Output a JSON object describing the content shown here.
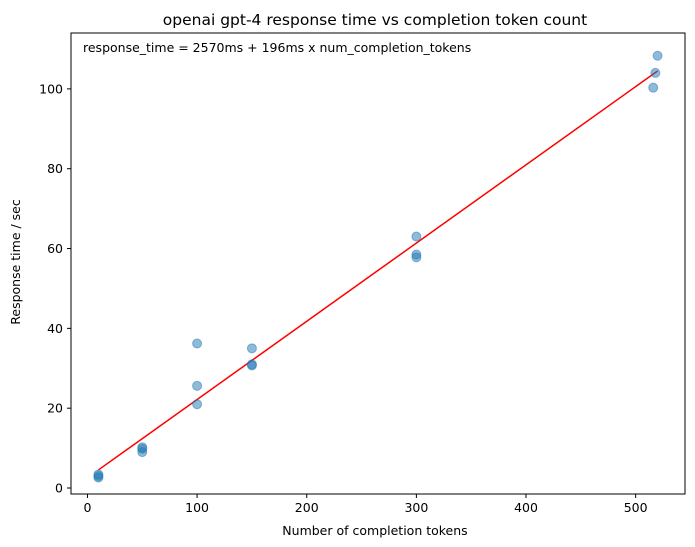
{
  "chart_data": {
    "type": "scatter",
    "title": "openai gpt-4 response time vs completion token count",
    "xlabel": "Number of completion tokens",
    "ylabel": "Response time / sec",
    "annotation": "response_time = 2570ms + 196ms x num_completion_tokens",
    "xlim": [
      -15,
      545
    ],
    "ylim": [
      -1.5,
      114
    ],
    "xticks": [
      0,
      100,
      200,
      300,
      400,
      500
    ],
    "yticks": [
      0,
      20,
      40,
      60,
      80,
      100
    ],
    "grid": false,
    "points": [
      {
        "x": 10,
        "y": 2.6
      },
      {
        "x": 10,
        "y": 3.0
      },
      {
        "x": 10,
        "y": 3.4
      },
      {
        "x": 50,
        "y": 9.0
      },
      {
        "x": 50,
        "y": 9.8
      },
      {
        "x": 50,
        "y": 10.2
      },
      {
        "x": 100,
        "y": 21.0
      },
      {
        "x": 100,
        "y": 25.6
      },
      {
        "x": 100,
        "y": 36.2
      },
      {
        "x": 150,
        "y": 30.7
      },
      {
        "x": 150,
        "y": 31.0
      },
      {
        "x": 150,
        "y": 35.0
      },
      {
        "x": 300,
        "y": 57.8
      },
      {
        "x": 300,
        "y": 58.5
      },
      {
        "x": 300,
        "y": 63.0
      },
      {
        "x": 516,
        "y": 100.3
      },
      {
        "x": 518,
        "y": 104.0
      },
      {
        "x": 520,
        "y": 108.3
      }
    ],
    "fit_line": {
      "intercept": 2.57,
      "slope": 0.196,
      "x_range": [
        10,
        520
      ],
      "color": "#ff0000"
    },
    "marker_color": "#1f77b4",
    "marker_opacity": 0.5
  }
}
